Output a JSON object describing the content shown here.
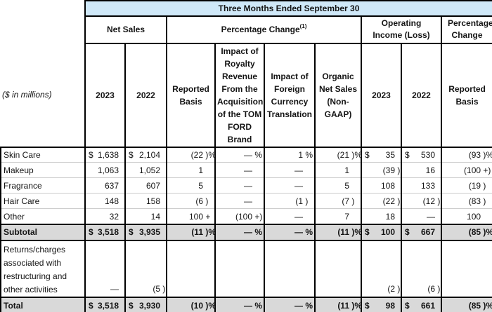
{
  "title_bar": {
    "label": "Three Months Ended September 30"
  },
  "groups": {
    "net_sales": "Net Sales",
    "pct_change": "Percentage Change",
    "pct_change_footnote": "(1)",
    "operating_income": "Operating Income (Loss)",
    "pct_change_right": "Percentage Change"
  },
  "row_label_note": "($ in millions)",
  "columns": [
    "2023",
    "2022",
    "Reported Basis",
    "Impact of Royalty Revenue From the Acquisition of the TOM FORD Brand",
    "Impact of Foreign Currency Translation",
    "Organic Net Sales (Non-GAAP)",
    "2023",
    "2022",
    "Reported Basis"
  ],
  "colors": {
    "header_blue": "#cfe8f8",
    "total_gray": "#d9d9d9",
    "border_black": "#000000",
    "row_separator": "#cccccc"
  },
  "rows": [
    {
      "id": "skin-care",
      "label": "Skin Care",
      "type": "data",
      "cells": [
        {
          "d": "$",
          "n": "1,638",
          "s": ""
        },
        {
          "d": "$",
          "n": "2,104",
          "s": ""
        },
        {
          "n": "(22",
          "s": " )%"
        },
        {
          "n": "—",
          "s": " %"
        },
        {
          "n": "1",
          "s": " %"
        },
        {
          "n": "(21",
          "s": " )%"
        },
        {
          "d": "$",
          "n": "35",
          "s": ""
        },
        {
          "d": "$",
          "n": "530",
          "s": ""
        },
        {
          "n": "(93",
          "s": " )%"
        }
      ]
    },
    {
      "id": "makeup",
      "label": "Makeup",
      "type": "data",
      "cells": [
        {
          "n": "1,063",
          "s": ""
        },
        {
          "n": "1,052",
          "s": ""
        },
        {
          "n": "1",
          "s": ""
        },
        {
          "n": "—",
          "s": ""
        },
        {
          "n": "—",
          "s": ""
        },
        {
          "n": "1",
          "s": ""
        },
        {
          "n": "(39",
          "s": " )"
        },
        {
          "n": "16",
          "s": ""
        },
        {
          "n": "(100",
          "s": " +)"
        }
      ]
    },
    {
      "id": "fragrance",
      "label": "Fragrance",
      "type": "data",
      "cells": [
        {
          "n": "637",
          "s": ""
        },
        {
          "n": "607",
          "s": ""
        },
        {
          "n": "5",
          "s": ""
        },
        {
          "n": "—",
          "s": ""
        },
        {
          "n": "—",
          "s": ""
        },
        {
          "n": "5",
          "s": ""
        },
        {
          "n": "108",
          "s": ""
        },
        {
          "n": "133",
          "s": ""
        },
        {
          "n": "(19",
          "s": " )"
        }
      ]
    },
    {
      "id": "hair-care",
      "label": "Hair Care",
      "type": "data",
      "cells": [
        {
          "n": "148",
          "s": ""
        },
        {
          "n": "158",
          "s": ""
        },
        {
          "n": "(6",
          "s": " )"
        },
        {
          "n": "—",
          "s": ""
        },
        {
          "n": "(1",
          "s": " )"
        },
        {
          "n": "(7",
          "s": " )"
        },
        {
          "n": "(22",
          "s": " )"
        },
        {
          "n": "(12",
          "s": " )"
        },
        {
          "n": "(83",
          "s": " )"
        }
      ]
    },
    {
      "id": "other",
      "label": "Other",
      "type": "data",
      "cells": [
        {
          "n": "32",
          "s": ""
        },
        {
          "n": "14",
          "s": ""
        },
        {
          "n": "100",
          "s": " +"
        },
        {
          "n": "(100",
          "s": " +)"
        },
        {
          "n": "—",
          "s": ""
        },
        {
          "n": "7",
          "s": ""
        },
        {
          "n": "18",
          "s": ""
        },
        {
          "n": "—",
          "s": ""
        },
        {
          "n": "100",
          "s": ""
        }
      ]
    },
    {
      "id": "subtotal",
      "label": "Subtotal",
      "type": "subtotal",
      "cells": [
        {
          "d": "$",
          "n": "3,518",
          "s": ""
        },
        {
          "d": "$",
          "n": "3,935",
          "s": ""
        },
        {
          "n": "(11",
          "s": " )%"
        },
        {
          "n": "—",
          "s": " %"
        },
        {
          "n": "—",
          "s": " %"
        },
        {
          "n": "(11",
          "s": " )%"
        },
        {
          "d": "$",
          "n": "100",
          "s": ""
        },
        {
          "d": "$",
          "n": "667",
          "s": ""
        },
        {
          "n": "(85",
          "s": " )%"
        }
      ]
    },
    {
      "id": "returns-charges",
      "label": "Returns/charges associated with restructuring and other activities",
      "type": "returns",
      "cells": [
        {
          "n": "—",
          "s": ""
        },
        {
          "n": "(5",
          "s": " )"
        },
        null,
        null,
        null,
        null,
        {
          "n": "(2",
          "s": " )"
        },
        {
          "n": "(6",
          "s": " )"
        },
        null
      ]
    },
    {
      "id": "total",
      "label": "Total",
      "type": "total",
      "cells": [
        {
          "d": "$",
          "n": "3,518",
          "s": ""
        },
        {
          "d": "$",
          "n": "3,930",
          "s": ""
        },
        {
          "n": "(10",
          "s": " )%"
        },
        {
          "n": "—",
          "s": " %"
        },
        {
          "n": "—",
          "s": " %"
        },
        {
          "n": "(11",
          "s": " )%"
        },
        {
          "d": "$",
          "n": "98",
          "s": ""
        },
        {
          "d": "$",
          "n": "661",
          "s": ""
        },
        {
          "n": "(85",
          "s": " )%"
        }
      ]
    }
  ]
}
